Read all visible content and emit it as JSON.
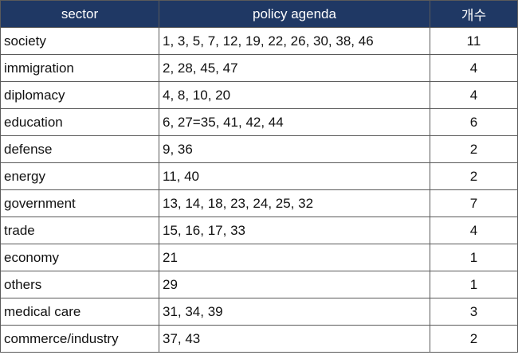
{
  "table": {
    "headers": {
      "sector": "sector",
      "agenda": "policy agenda",
      "count": "개수"
    },
    "rows": [
      {
        "sector": "society",
        "agenda": "1, 3, 5, 7, 12, 19, 22, 26, 30, 38, 46",
        "count": "11"
      },
      {
        "sector": "immigration",
        "agenda": "2, 28, 45, 47",
        "count": "4"
      },
      {
        "sector": "diplomacy",
        "agenda": "4, 8, 10, 20",
        "count": "4"
      },
      {
        "sector": "education",
        "agenda": "6, 27=35, 41, 42, 44",
        "count": "6"
      },
      {
        "sector": "defense",
        "agenda": "9, 36",
        "count": "2"
      },
      {
        "sector": "energy",
        "agenda": "11, 40",
        "count": "2"
      },
      {
        "sector": "government",
        "agenda": "13, 14, 18, 23, 24, 25, 32",
        "count": "7"
      },
      {
        "sector": "trade",
        "agenda": "15, 16, 17, 33",
        "count": "4"
      },
      {
        "sector": "economy",
        "agenda": "21",
        "count": "1"
      },
      {
        "sector": "others",
        "agenda": "29",
        "count": "1"
      },
      {
        "sector": "medical care",
        "agenda": "31, 34, 39",
        "count": "3"
      },
      {
        "sector": "commerce/industry",
        "agenda": "37, 43",
        "count": "2"
      }
    ],
    "colors": {
      "header_bg": "#1f3864",
      "header_text": "#ffffff",
      "border": "#5a5a5a"
    }
  }
}
